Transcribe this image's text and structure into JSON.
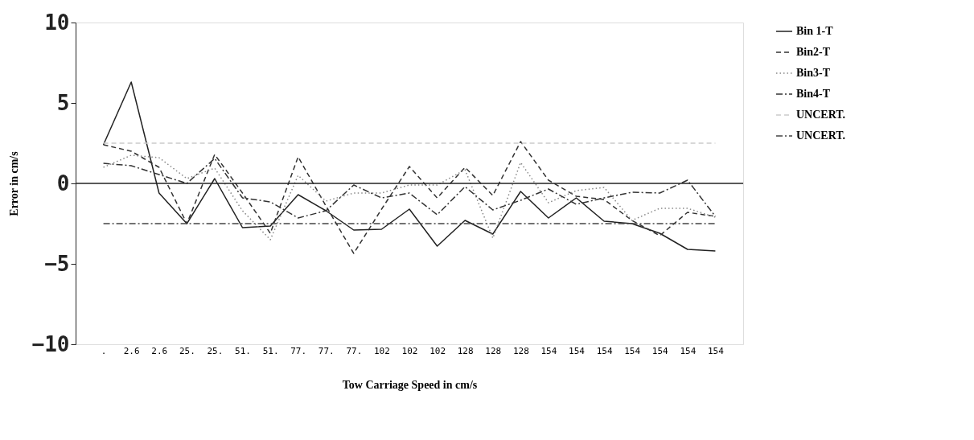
{
  "chart_data": {
    "type": "line",
    "xlabel": "Tow Carriage Speed in cm/s",
    "ylabel": "Error in cm/s",
    "categories": [
      ".",
      "2.6",
      "2.6",
      "25.",
      "25.",
      "51.",
      "51.",
      "77.",
      "77.",
      "77.",
      "102",
      "102",
      "102",
      "128",
      "128",
      "128",
      "154",
      "154",
      "154",
      "154",
      "154",
      "154",
      "154"
    ],
    "series": [
      {
        "name": "Bin 1-T",
        "color": "#222222",
        "line_style": "solid",
        "values": [
          2.4,
          6.3,
          -0.6,
          -2.5,
          0.3,
          -2.75,
          -2.65,
          -0.7,
          -1.7,
          -2.9,
          -2.85,
          -1.6,
          -3.9,
          -2.3,
          -3.15,
          -0.5,
          -2.15,
          -0.9,
          -2.35,
          -2.5,
          -3.1,
          -4.1,
          -4.2
        ]
      },
      {
        "name": "Bin2-T",
        "color": "#333333",
        "line_style": "dashed",
        "values": [
          2.4,
          2.0,
          1.0,
          -2.5,
          1.8,
          -0.6,
          -3.1,
          1.65,
          -1.4,
          -4.35,
          -1.6,
          1.05,
          -0.9,
          1.0,
          -0.75,
          2.6,
          0.2,
          -0.8,
          -1.0,
          -2.3,
          -3.25,
          -1.8,
          -2.05
        ]
      },
      {
        "name": "Bin3-T",
        "color": "#888888",
        "line_style": "dotted",
        "values": [
          1.0,
          1.75,
          1.6,
          0.3,
          0.95,
          -1.7,
          -3.5,
          0.5,
          -1.1,
          -0.6,
          -0.6,
          -0.1,
          -0.1,
          0.85,
          -3.4,
          1.3,
          -1.2,
          -0.45,
          -0.25,
          -2.3,
          -1.55,
          -1.55,
          -2.1
        ]
      },
      {
        "name": "Bin4-T",
        "color": "#333333",
        "line_style": "dashdot",
        "values": [
          1.25,
          1.1,
          0.55,
          0.0,
          1.55,
          -0.9,
          -1.15,
          -2.15,
          -1.7,
          -0.1,
          -0.9,
          -0.6,
          -1.95,
          -0.2,
          -1.65,
          -1.05,
          -0.35,
          -1.3,
          -0.9,
          -0.55,
          -0.6,
          0.2,
          -2.05
        ]
      },
      {
        "name": "UNCERT.",
        "color": "#cccccc",
        "line_style": "dashed",
        "values": [
          2.5,
          2.5,
          2.5,
          2.5,
          2.5,
          2.5,
          2.5,
          2.5,
          2.5,
          2.5,
          2.5,
          2.5,
          2.5,
          2.5,
          2.5,
          2.5,
          2.5,
          2.5,
          2.5,
          2.5,
          2.5,
          2.5,
          2.5
        ]
      },
      {
        "name": "UNCERT.",
        "color": "#444444",
        "line_style": "dashdot",
        "values": [
          -2.5,
          -2.5,
          -2.5,
          -2.5,
          -2.5,
          -2.5,
          -2.5,
          -2.5,
          -2.5,
          -2.5,
          -2.5,
          -2.5,
          -2.5,
          -2.5,
          -2.5,
          -2.5,
          -2.5,
          -2.5,
          -2.5,
          -2.5,
          -2.5,
          -2.5,
          -2.5
        ]
      }
    ],
    "ylim": [
      -10,
      10
    ],
    "yticks": [
      -10,
      -5,
      0,
      5,
      10
    ],
    "ref_lines": [
      {
        "axis": "y",
        "value": 0,
        "color": "#222222",
        "line_style": "solid"
      }
    ],
    "grid": false,
    "legend": "right"
  }
}
